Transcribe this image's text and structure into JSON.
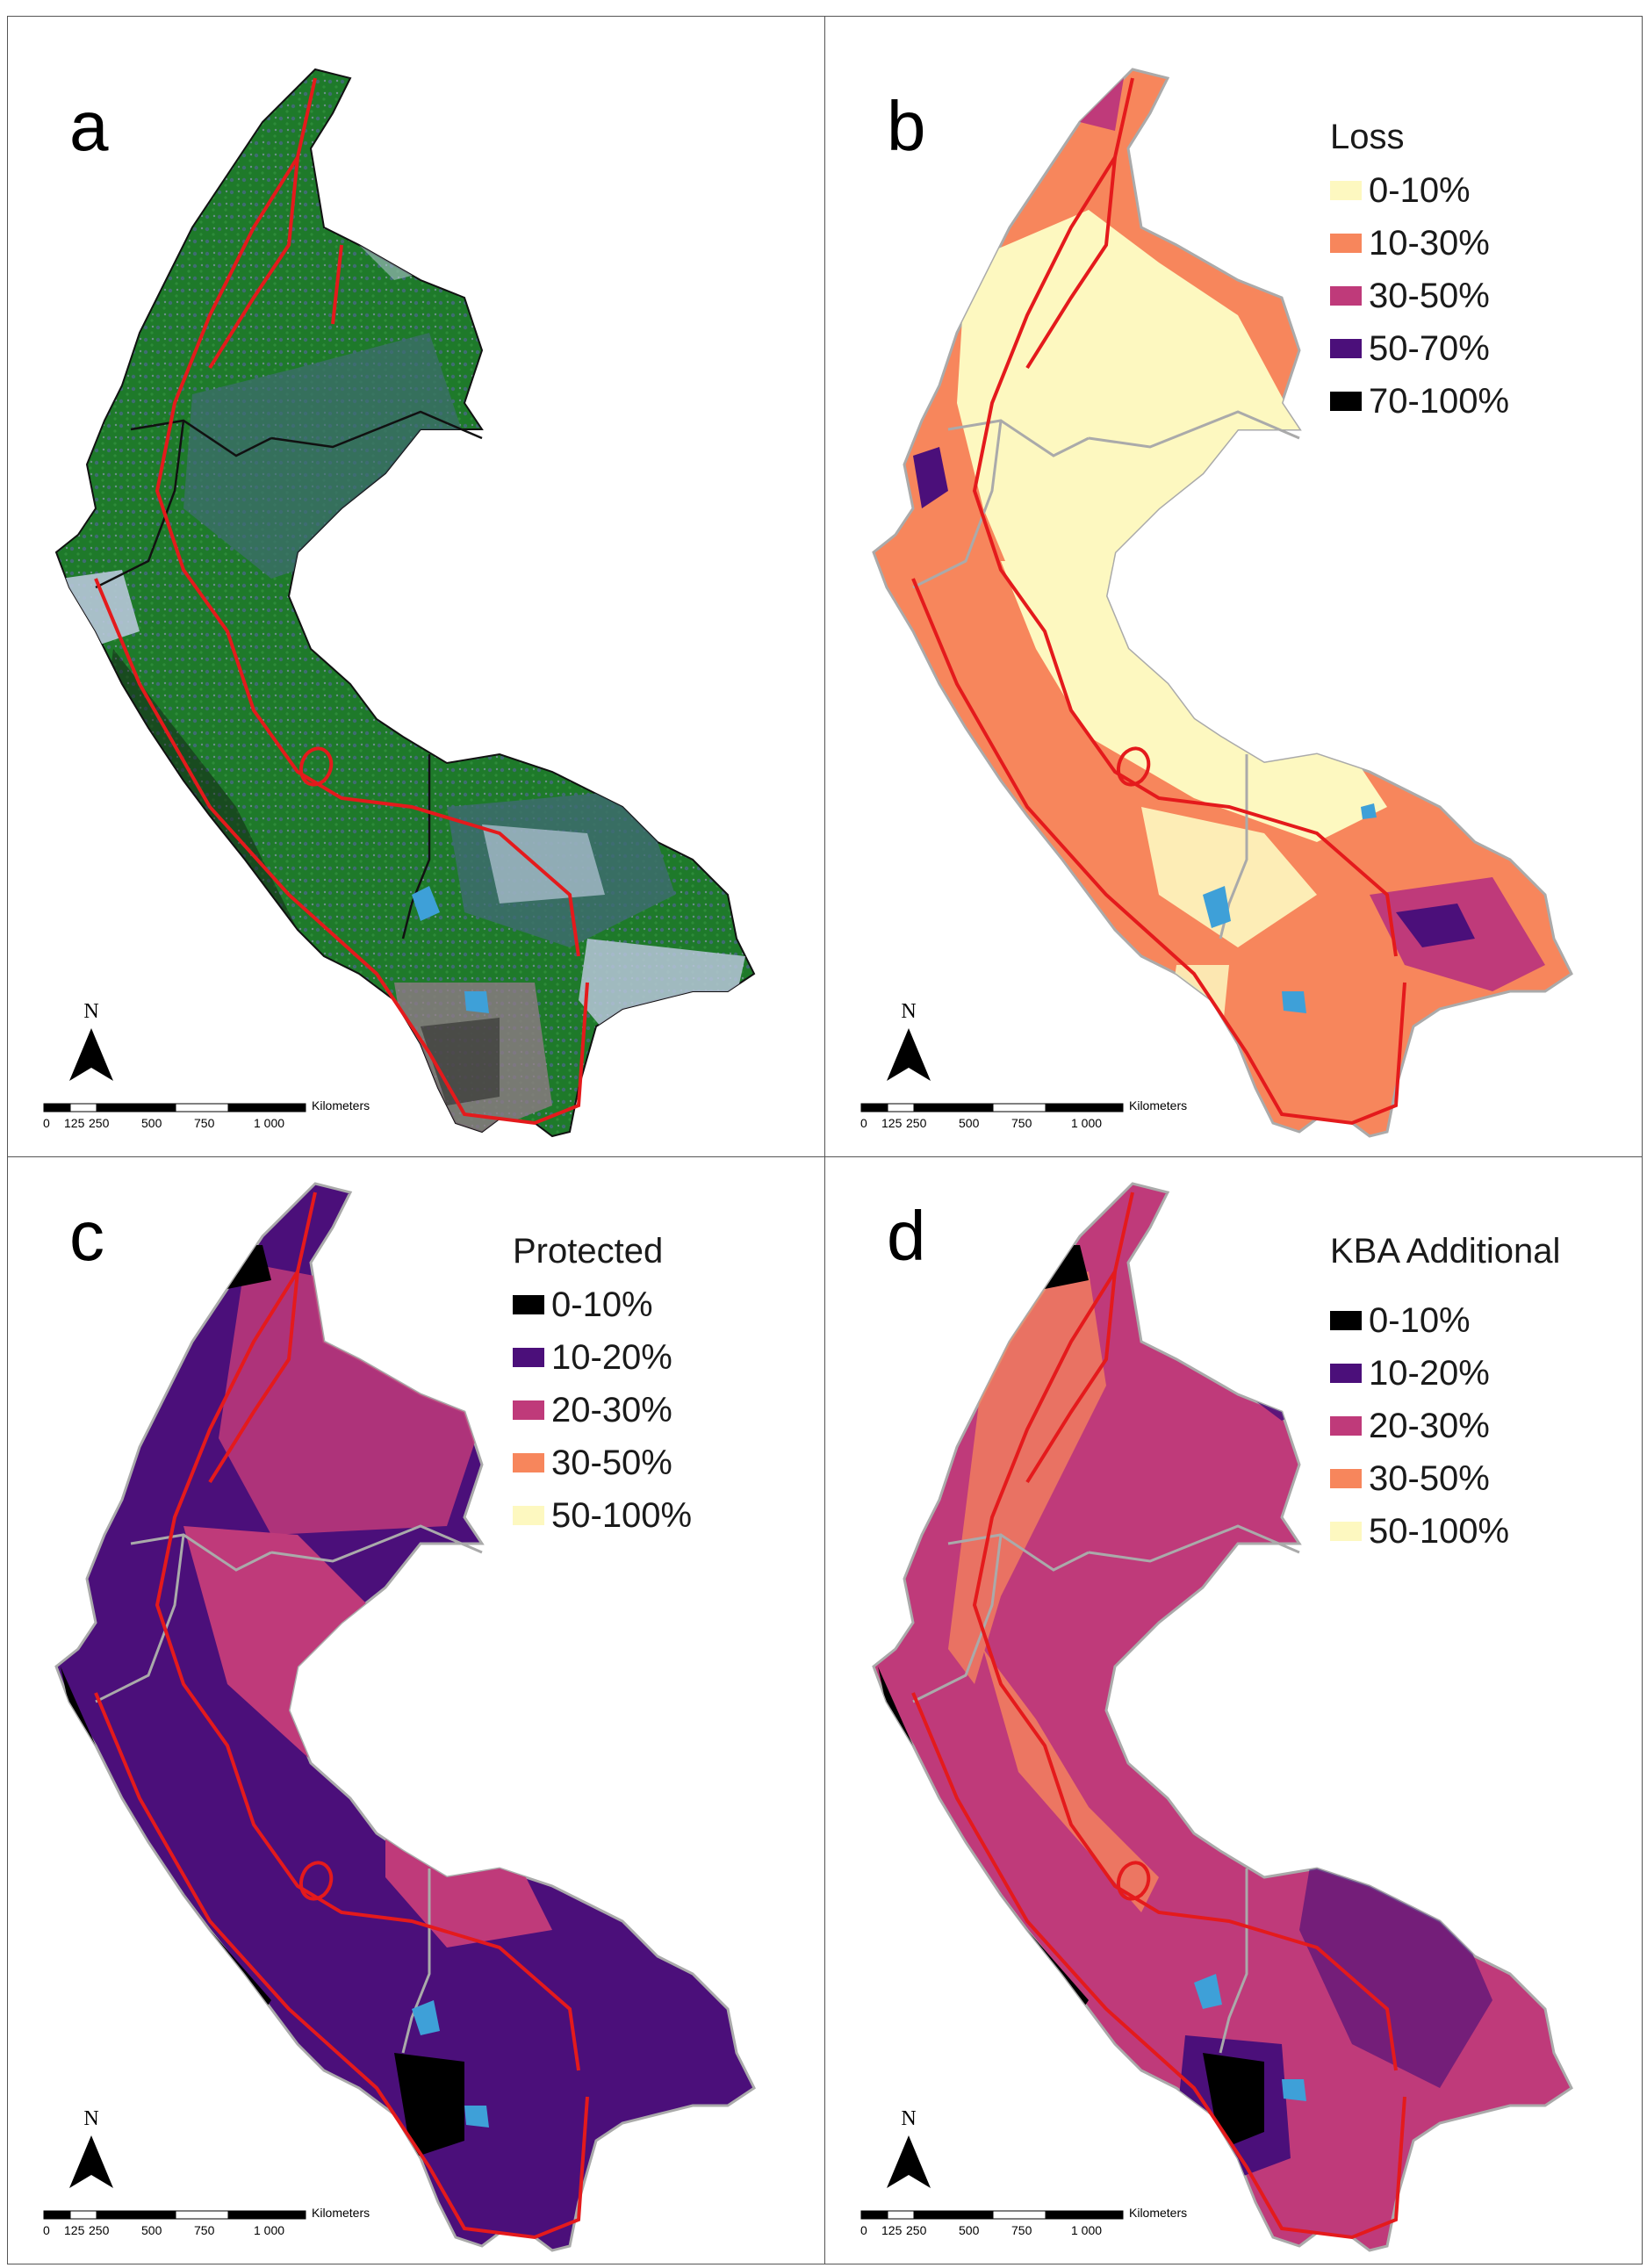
{
  "colors": {
    "red_boundary": "#e41a1c",
    "water": "#3ea0d8",
    "frame": "#555555",
    "landcover_forest": "#1e7a2a",
    "landcover_mixed": "#3f6c72",
    "landcover_open": "#b7c6d9",
    "landcover_highland": "#8f7a86"
  },
  "panels": [
    {
      "letter": "a",
      "legend": null,
      "north_label": "N",
      "scale": {
        "unit": "Kilometers",
        "ticks": [
          "0",
          "125",
          "250",
          "500",
          "750",
          "1 000"
        ]
      }
    },
    {
      "letter": "b",
      "legend": {
        "title": "Loss",
        "items": [
          {
            "label": "0-10%",
            "color": "#fdf8c0"
          },
          {
            "label": "10-30%",
            "color": "#f7865c"
          },
          {
            "label": "30-50%",
            "color": "#bf3a7a"
          },
          {
            "label": "50-70%",
            "color": "#4b0f7a"
          },
          {
            "label": "70-100%",
            "color": "#000000"
          }
        ]
      },
      "north_label": "N",
      "scale": {
        "unit": "Kilometers",
        "ticks": [
          "0",
          "125",
          "250",
          "500",
          "750",
          "1 000"
        ]
      }
    },
    {
      "letter": "c",
      "legend": {
        "title": "Protected",
        "items": [
          {
            "label": "0-10%",
            "color": "#000000"
          },
          {
            "label": "10-20%",
            "color": "#4b0f7a"
          },
          {
            "label": "20-30%",
            "color": "#bf3a7a"
          },
          {
            "label": "30-50%",
            "color": "#f7865c"
          },
          {
            "label": "50-100%",
            "color": "#fdf8c0"
          }
        ]
      },
      "north_label": "N",
      "scale": {
        "unit": "Kilometers",
        "ticks": [
          "0",
          "125",
          "250",
          "500",
          "750",
          "1 000"
        ]
      }
    },
    {
      "letter": "d",
      "legend": {
        "title": "KBA Additional",
        "items": [
          {
            "label": "0-10%",
            "color": "#000000"
          },
          {
            "label": "10-20%",
            "color": "#4b0f7a"
          },
          {
            "label": "20-30%",
            "color": "#bf3a7a"
          },
          {
            "label": "30-50%",
            "color": "#f7865c"
          },
          {
            "label": "50-100%",
            "color": "#fdf8c0"
          }
        ]
      },
      "north_label": "N",
      "scale": {
        "unit": "Kilometers",
        "ticks": [
          "0",
          "125",
          "250",
          "500",
          "750",
          "1 000"
        ]
      }
    }
  ]
}
